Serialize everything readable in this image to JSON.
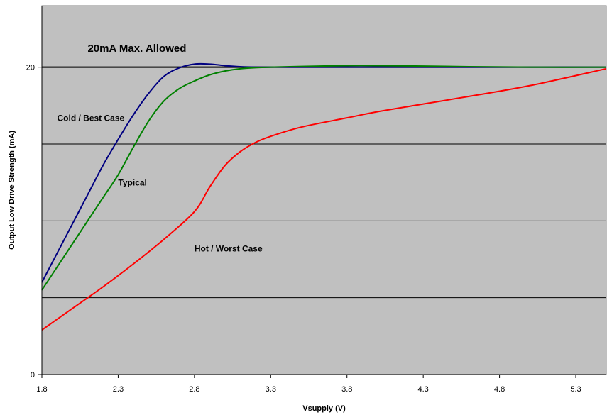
{
  "chart_data": {
    "type": "line",
    "xlabel": "Vsupply (V)",
    "ylabel": "Output Low Drive Strength (mA)",
    "xlim": [
      1.8,
      5.5
    ],
    "ylim": [
      0,
      24
    ],
    "x_ticks": [
      "1.8",
      "2.3",
      "2.8",
      "3.3",
      "3.8",
      "4.3",
      "4.8",
      "5.3"
    ],
    "y_ticks": [
      "0",
      "20"
    ],
    "gridlines_y": [
      5,
      10,
      15,
      20
    ],
    "grid": true,
    "background": "#c0c0c0",
    "limit_line": {
      "y": 20,
      "label": "20mA Max. Allowed",
      "color": "#000000"
    },
    "series": [
      {
        "name": "Cold / Best Case",
        "color": "#000080",
        "x": [
          1.8,
          1.9,
          2.0,
          2.1,
          2.2,
          2.3,
          2.4,
          2.5,
          2.6,
          2.7,
          2.8,
          2.9,
          3.0,
          3.1,
          3.2,
          3.3,
          3.5,
          4.0,
          4.5,
          5.0,
          5.5
        ],
        "y": [
          6.0,
          7.9,
          9.8,
          11.7,
          13.6,
          15.3,
          16.9,
          18.3,
          19.4,
          19.95,
          20.2,
          20.2,
          20.1,
          20.03,
          20.0,
          20.0,
          20.0,
          20.0,
          20.0,
          20.0,
          20.0
        ]
      },
      {
        "name": "Typical",
        "color": "#008000",
        "x": [
          1.8,
          1.9,
          2.0,
          2.1,
          2.2,
          2.3,
          2.4,
          2.5,
          2.6,
          2.7,
          2.8,
          2.9,
          3.0,
          3.1,
          3.2,
          3.3,
          3.5,
          3.8,
          4.0,
          4.3,
          4.6,
          5.0,
          5.5
        ],
        "y": [
          5.5,
          7.0,
          8.5,
          10.0,
          11.5,
          13.0,
          14.8,
          16.5,
          17.8,
          18.6,
          19.1,
          19.5,
          19.75,
          19.9,
          19.97,
          20.0,
          20.05,
          20.1,
          20.1,
          20.07,
          20.03,
          20.0,
          20.0
        ]
      },
      {
        "name": "Hot / Worst Case",
        "color": "#ff0000",
        "x": [
          1.8,
          2.0,
          2.2,
          2.4,
          2.6,
          2.8,
          2.9,
          3.0,
          3.1,
          3.2,
          3.3,
          3.5,
          3.8,
          4.0,
          4.3,
          4.6,
          5.0,
          5.5
        ],
        "y": [
          2.9,
          4.3,
          5.7,
          7.2,
          8.8,
          10.6,
          12.2,
          13.6,
          14.5,
          15.1,
          15.5,
          16.1,
          16.7,
          17.1,
          17.6,
          18.1,
          18.8,
          19.9
        ]
      }
    ],
    "annotations": [
      {
        "text": "20mA Max. Allowed",
        "x": 2.1,
        "y": 21.0,
        "style": "big"
      },
      {
        "text": "Cold / Best Case",
        "x": 1.9,
        "y": 16.5
      },
      {
        "text": "Typical",
        "x": 2.3,
        "y": 12.3
      },
      {
        "text": "Hot / Worst Case",
        "x": 2.8,
        "y": 8.0
      }
    ]
  }
}
